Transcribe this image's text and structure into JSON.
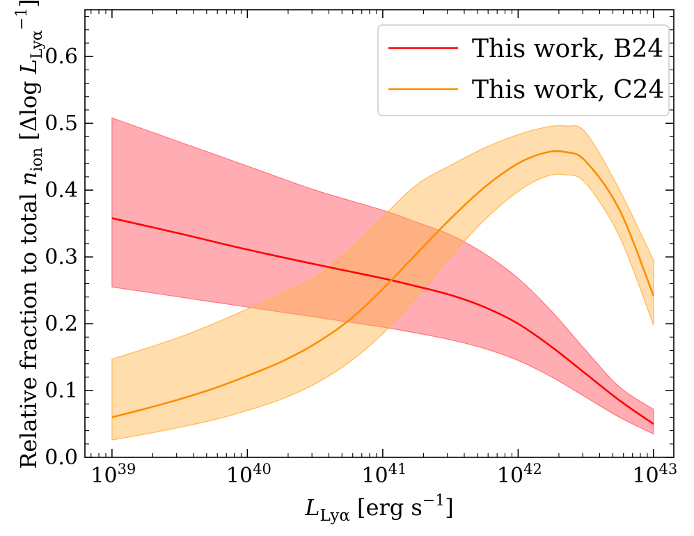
{
  "chart_data": {
    "type": "line",
    "title": "",
    "xlabel": "L_Lyα [erg s^-1]",
    "ylabel": "Relative fraction to total n_ion [Δlog L_Lyα^-1]",
    "xscale": "log",
    "xlim_log10": [
      38.8,
      43.15
    ],
    "ylim": [
      0.0,
      0.67
    ],
    "x_ticks": [
      {
        "base": "10",
        "exp": "39",
        "log10": 39
      },
      {
        "base": "10",
        "exp": "40",
        "log10": 40
      },
      {
        "base": "10",
        "exp": "41",
        "log10": 41
      },
      {
        "base": "10",
        "exp": "42",
        "log10": 42
      },
      {
        "base": "10",
        "exp": "43",
        "log10": 43
      }
    ],
    "y_ticks": [
      "0.0",
      "0.1",
      "0.2",
      "0.3",
      "0.4",
      "0.5",
      "0.6"
    ],
    "legend_position": "top-right",
    "series": [
      {
        "name": "This work, B24",
        "color": "#ff0000",
        "band_color": "#ff6a72",
        "band_opacity": 0.55,
        "x_log10": [
          39,
          39.5,
          40,
          40.5,
          41,
          41.25,
          41.5,
          41.75,
          42,
          42.25,
          42.5,
          42.75,
          43
        ],
        "median": [
          0.358,
          0.335,
          0.311,
          0.289,
          0.268,
          0.256,
          0.243,
          0.225,
          0.2,
          0.165,
          0.125,
          0.085,
          0.05
        ],
        "lower": [
          0.255,
          0.24,
          0.225,
          0.21,
          0.195,
          0.186,
          0.176,
          0.163,
          0.145,
          0.12,
          0.09,
          0.06,
          0.035
        ],
        "upper": [
          0.508,
          0.472,
          0.436,
          0.4,
          0.37,
          0.352,
          0.333,
          0.305,
          0.268,
          0.218,
          0.16,
          0.105,
          0.072
        ]
      },
      {
        "name": "This work, C24",
        "color": "#ff8c00",
        "band_color": "#ffb347",
        "band_opacity": 0.45,
        "x_log10": [
          39,
          39.25,
          39.5,
          39.75,
          40,
          40.25,
          40.5,
          40.75,
          41,
          41.25,
          41.5,
          41.75,
          42,
          42.2,
          42.35,
          42.5,
          42.75,
          43
        ],
        "median": [
          0.06,
          0.073,
          0.087,
          0.103,
          0.122,
          0.143,
          0.17,
          0.205,
          0.252,
          0.305,
          0.357,
          0.404,
          0.44,
          0.456,
          0.457,
          0.443,
          0.37,
          0.242
        ],
        "lower": [
          0.026,
          0.035,
          0.045,
          0.056,
          0.07,
          0.087,
          0.11,
          0.142,
          0.185,
          0.24,
          0.3,
          0.355,
          0.398,
          0.42,
          0.423,
          0.41,
          0.33,
          0.198
        ],
        "upper": [
          0.147,
          0.163,
          0.18,
          0.2,
          0.222,
          0.245,
          0.27,
          0.31,
          0.36,
          0.408,
          0.437,
          0.463,
          0.483,
          0.494,
          0.496,
          0.486,
          0.4,
          0.295
        ]
      }
    ]
  }
}
